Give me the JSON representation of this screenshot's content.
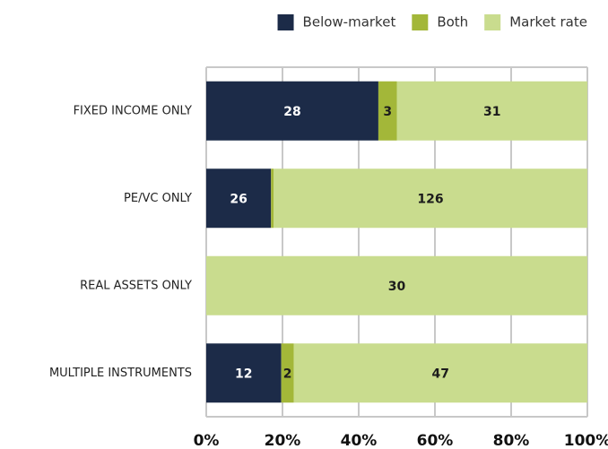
{
  "chart_data": {
    "type": "bar",
    "orientation": "horizontal",
    "stacking": "percent",
    "categories": [
      "FIXED INCOME ONLY",
      "PE/VC ONLY",
      "REAL ASSETS ONLY",
      "MULTIPLE INSTRUMENTS"
    ],
    "series": [
      {
        "name": "Below-market",
        "color": "#1c2b48",
        "label_color": "#ffffff",
        "values": [
          28,
          26,
          null,
          12
        ]
      },
      {
        "name": "Both",
        "color": "#a3b739",
        "label_color": "#1c1c1c",
        "values": [
          3,
          1,
          null,
          2
        ]
      },
      {
        "name": "Market rate",
        "color": "#c9dc8e",
        "label_color": "#1c1c1c",
        "values": [
          31,
          126,
          30,
          47
        ]
      }
    ],
    "xlim": [
      0,
      100
    ],
    "xticks": [
      {
        "value": 0,
        "label": "0%"
      },
      {
        "value": 20,
        "label": "20%"
      },
      {
        "value": 40,
        "label": "40%"
      },
      {
        "value": 60,
        "label": "60%"
      },
      {
        "value": 80,
        "label": "80%"
      },
      {
        "value": 100,
        "label": "100%"
      }
    ],
    "grid": true,
    "legend": "top-right"
  }
}
